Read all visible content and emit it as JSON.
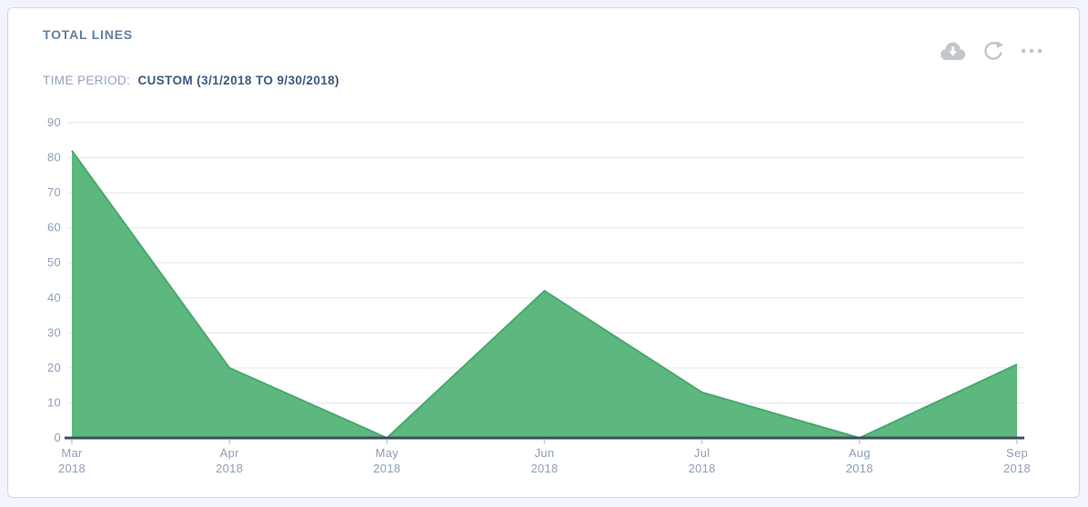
{
  "card": {
    "title": "TOTAL LINES",
    "time_period_label": "TIME PERIOD:",
    "time_period_value": "CUSTOM (3/1/2018 TO 9/30/2018)",
    "actions": {
      "download_icon": "cloud-download-icon",
      "refresh_icon": "refresh-icon",
      "more_icon": "ellipsis-icon"
    }
  },
  "colors": {
    "area_fill": "#5cb87e",
    "area_stroke": "#47a96c",
    "grid_line": "#ededf2",
    "axis_line": "#3f4c61",
    "x_tick_mark": "#c9ced9",
    "tick_label": "#8fa0b6",
    "icon_gray": "#c3c6ca",
    "title_text": "#62809f",
    "subtitle_label": "#94a4ba",
    "subtitle_value": "#3d5a7e",
    "card_border": "#cfd6ee",
    "page_background": "#f2f4fb"
  },
  "chart_data": {
    "type": "area",
    "title": "TOTAL LINES",
    "subtitle": "TIME PERIOD: CUSTOM (3/1/2018 TO 9/30/2018)",
    "categories": [
      "Mar 2018",
      "Apr 2018",
      "May 2018",
      "Jun 2018",
      "Jul 2018",
      "Aug 2018",
      "Sep 2018"
    ],
    "values": [
      82,
      20,
      0,
      42,
      13,
      0,
      21
    ],
    "xlabel": "",
    "ylabel": "",
    "ylim": [
      0,
      90
    ],
    "ytick_interval": 10,
    "grid": "horizontal",
    "legend": "none"
  }
}
